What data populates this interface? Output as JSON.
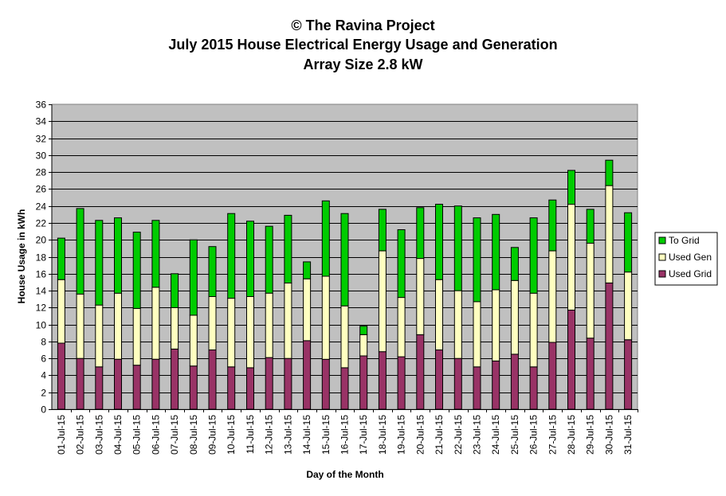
{
  "chart_data": {
    "type": "bar",
    "stacked": true,
    "title": "© The Ravina Project",
    "subtitle": "July 2015 House Electrical Energy Usage and Generation",
    "subtitle2": "Array Size 2.8 kW",
    "xlabel": "Day of the Month",
    "ylabel": "House Usage in kWh",
    "ylim": [
      0,
      36
    ],
    "yticks": [
      0,
      2,
      4,
      6,
      8,
      10,
      12,
      14,
      16,
      18,
      20,
      22,
      24,
      26,
      28,
      30,
      32,
      34,
      36
    ],
    "grid": true,
    "legend_position": "right",
    "categories": [
      "01-Jul-15",
      "02-Jul-15",
      "03-Jul-15",
      "04-Jul-15",
      "05-Jul-15",
      "06-Jul-15",
      "07-Jul-15",
      "08-Jul-15",
      "09-Jul-15",
      "10-Jul-15",
      "11-Jul-15",
      "12-Jul-15",
      "13-Jul-15",
      "14-Jul-15",
      "15-Jul-15",
      "16-Jul-15",
      "17-Jul-15",
      "18-Jul-15",
      "19-Jul-15",
      "20-Jul-15",
      "21-Jul-15",
      "22-Jul-15",
      "23-Jul-15",
      "24-Jul-15",
      "25-Jul-15",
      "26-Jul-15",
      "27-Jul-15",
      "28-Jul-15",
      "29-Jul-15",
      "30-Jul-15",
      "31-Jul-15"
    ],
    "series": [
      {
        "name": "Used Grid",
        "color": "#993366",
        "values": [
          7.8,
          6.0,
          5.0,
          5.9,
          5.2,
          5.9,
          7.1,
          5.1,
          7.0,
          5.0,
          4.9,
          6.1,
          6.0,
          8.1,
          5.9,
          4.9,
          6.3,
          6.8,
          6.2,
          8.8,
          7.0,
          6.0,
          5.0,
          5.7,
          6.5,
          5.0,
          7.9,
          11.7,
          8.4,
          14.9,
          8.2
        ]
      },
      {
        "name": "Used Gen",
        "color": "#FFFFC0",
        "values": [
          7.5,
          7.6,
          7.3,
          7.8,
          6.7,
          8.5,
          4.9,
          6.0,
          6.3,
          8.1,
          8.4,
          7.6,
          8.9,
          7.3,
          9.8,
          7.3,
          2.5,
          11.9,
          7.0,
          9.0,
          8.3,
          8.0,
          7.7,
          8.4,
          8.7,
          8.7,
          10.8,
          12.5,
          11.2,
          11.5,
          8.0
        ]
      },
      {
        "name": "To Grid",
        "color": "#00CC00",
        "values": [
          4.9,
          10.1,
          10.0,
          8.9,
          9.0,
          7.9,
          4.0,
          8.9,
          5.9,
          10.0,
          8.9,
          7.9,
          8.0,
          2.0,
          8.9,
          10.9,
          1.0,
          4.9,
          8.0,
          6.0,
          8.9,
          10.0,
          9.9,
          8.9,
          3.9,
          8.9,
          6.0,
          4.0,
          4.0,
          3.0,
          7.0
        ]
      }
    ]
  }
}
